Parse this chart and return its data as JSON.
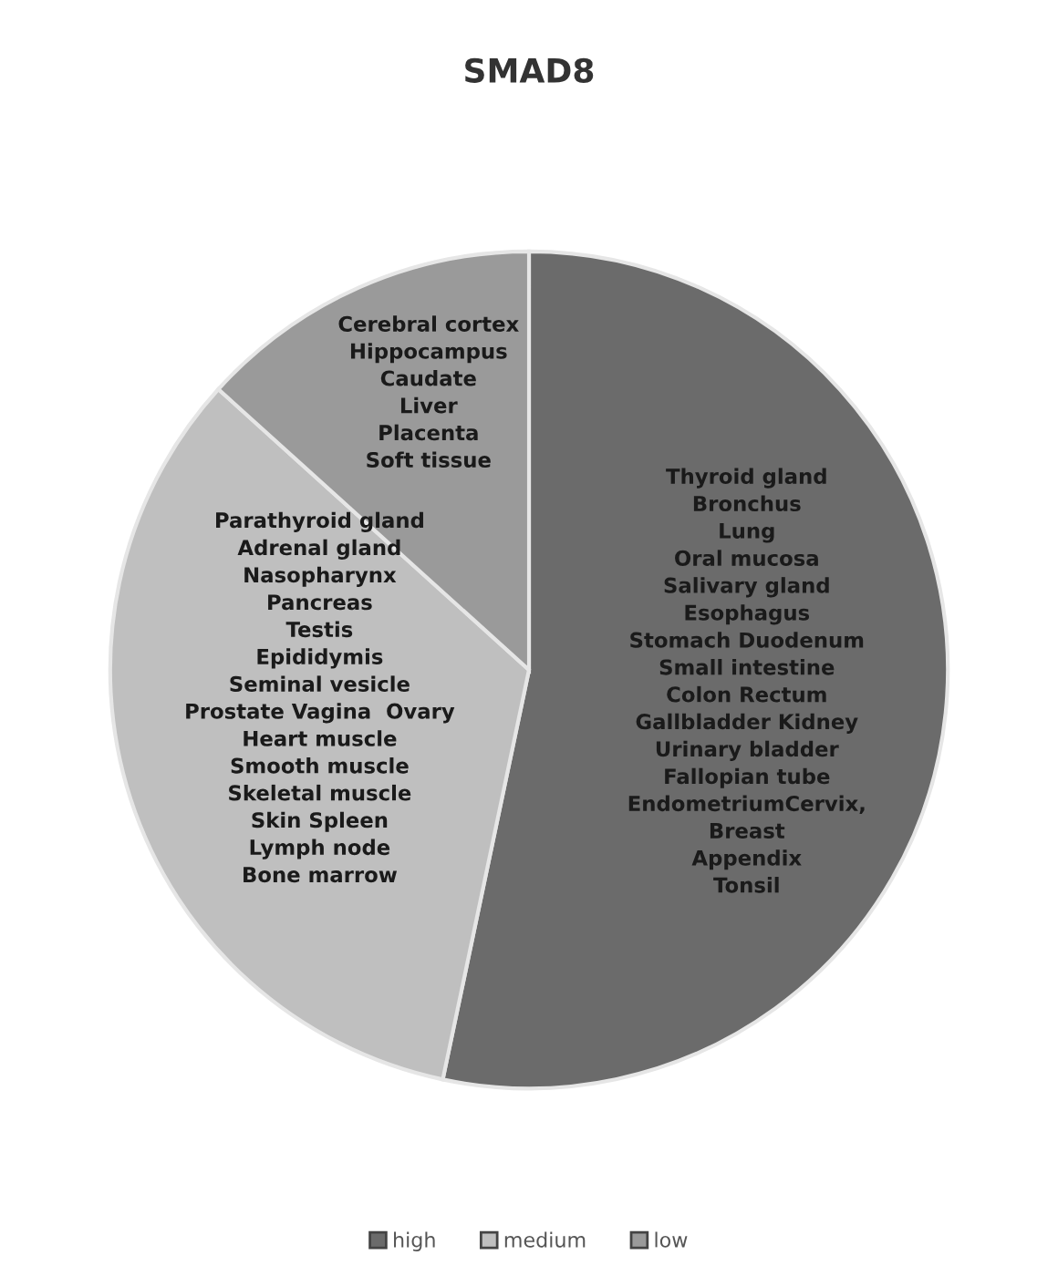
{
  "chart_data": {
    "type": "pie",
    "title": "SMAD8",
    "categories": [
      "high",
      "medium",
      "low"
    ],
    "values": [
      53.3,
      33.4,
      13.3
    ],
    "colors": [
      "#6b6b6b",
      "#bfbfbf",
      "#9a9a9a"
    ],
    "legend": "bottom",
    "annotations": [
      "Thyroid gland\nBronchus\nLung\nOral mucosa\nSalivary gland\nEsophagus\nStomach Duodenum\nSmall intestine\nColon Rectum\nGallbladder Kidney\nUrinary bladder\nFallopian tube\nEndometriumCervix,\nBreast\nAppendix\nTonsil",
      "Parathyroid gland\nAdrenal gland\nNasopharynx\nPancreas\nTestis\nEpididymis\nSeminal vesicle\nProstate Vagina  Ovary\nHeart muscle\nSmooth muscle\nSkeletal muscle\nSkin Spleen\nLymph node\nBone marrow",
      "Cerebral cortex\nHippocampus\nCaudate\nLiver\nPlacenta\nSoft tissue"
    ]
  }
}
